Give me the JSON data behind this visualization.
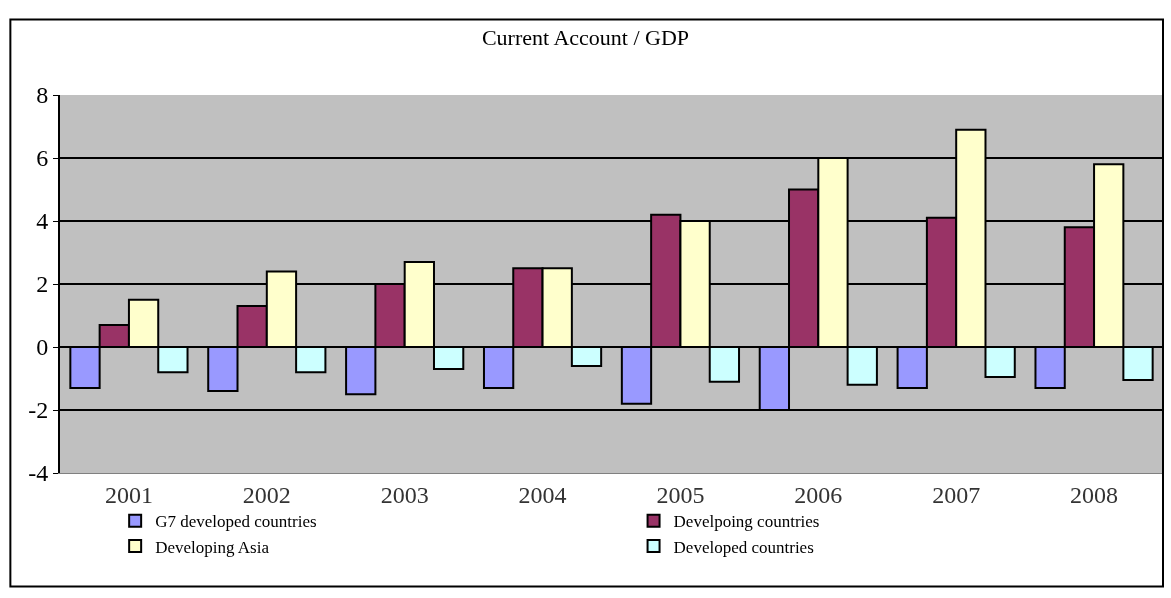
{
  "chart_data": {
    "type": "bar",
    "title": "Current Account / GDP",
    "categories": [
      "2001",
      "2002",
      "2003",
      "2004",
      "2005",
      "2006",
      "2007",
      "2008"
    ],
    "series": [
      {
        "name": "G7 developed countries",
        "color": "#9999ff",
        "values": [
          -1.3,
          -1.4,
          -1.5,
          -1.3,
          -1.8,
          -2.0,
          -1.3,
          -1.3
        ]
      },
      {
        "name": "Develpoing countries",
        "color": "#993366",
        "values": [
          0.7,
          1.3,
          2.0,
          2.5,
          4.2,
          5.0,
          4.1,
          3.8
        ]
      },
      {
        "name": "Developing Asia",
        "color": "#ffffcc",
        "values": [
          1.5,
          2.4,
          2.7,
          2.5,
          4.0,
          6.0,
          6.9,
          5.8
        ]
      },
      {
        "name": "Developed countries",
        "color": "#ccffff",
        "values": [
          -0.8,
          -0.8,
          -0.7,
          -0.6,
          -1.1,
          -1.2,
          -0.95,
          -1.05
        ]
      }
    ],
    "ylim": [
      -4,
      8
    ],
    "yticks": [
      -4,
      -2,
      0,
      2,
      4,
      6,
      8
    ],
    "grid": "y",
    "legend": "bottom"
  }
}
